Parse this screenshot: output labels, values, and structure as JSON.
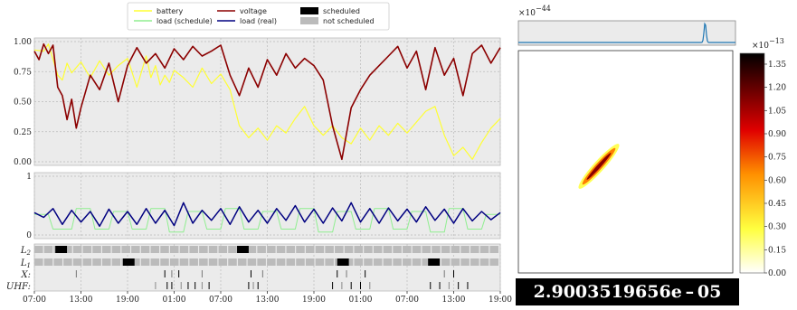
{
  "chart_data": [
    {
      "type": "line",
      "title": "",
      "ylim": [
        0,
        1
      ],
      "yticks": [
        "0.00",
        "0.25",
        "0.50",
        "0.75",
        "1.00"
      ],
      "grid": true,
      "legend": "top",
      "legend_entries": [
        {
          "label": "battery",
          "color": "#ffff33",
          "kind": "line"
        },
        {
          "label": "voltage",
          "color": "#8b0000",
          "kind": "line"
        },
        {
          "label": "scheduled",
          "color": "#000000",
          "kind": "patch"
        },
        {
          "label": "load (schedule)",
          "color": "#90ee90",
          "kind": "line"
        },
        {
          "label": "load (real)",
          "color": "#000080",
          "kind": "line"
        },
        {
          "label": "not scheduled",
          "color": "#bbbbbb",
          "kind": "patch"
        }
      ],
      "series": [
        {
          "name": "battery",
          "color": "#ffff33",
          "x": [
            0,
            2,
            3,
            5,
            6,
            7,
            8,
            10,
            12,
            14,
            16,
            18,
            20,
            22,
            24,
            25,
            26,
            27,
            28,
            29,
            30,
            32,
            34,
            36,
            38,
            40,
            42,
            44,
            46,
            48,
            50,
            52,
            54,
            56,
            58,
            60,
            62,
            64,
            66,
            68,
            70,
            72,
            74,
            76,
            78,
            80,
            82,
            84,
            86,
            88,
            90,
            92,
            94,
            96,
            98,
            100
          ],
          "y": [
            0.93,
            0.92,
            0.98,
            0.72,
            0.68,
            0.82,
            0.74,
            0.83,
            0.7,
            0.84,
            0.72,
            0.8,
            0.86,
            0.62,
            0.88,
            0.7,
            0.8,
            0.64,
            0.72,
            0.66,
            0.76,
            0.7,
            0.62,
            0.78,
            0.65,
            0.73,
            0.6,
            0.3,
            0.2,
            0.28,
            0.18,
            0.3,
            0.24,
            0.36,
            0.46,
            0.3,
            0.22,
            0.3,
            0.2,
            0.15,
            0.28,
            0.18,
            0.3,
            0.22,
            0.32,
            0.24,
            0.33,
            0.42,
            0.46,
            0.22,
            0.05,
            0.12,
            0.02,
            0.16,
            0.28,
            0.36
          ]
        },
        {
          "name": "voltage",
          "color": "#8b0000",
          "x": [
            0,
            1,
            2,
            3,
            4,
            5,
            6,
            7,
            8,
            9,
            10,
            12,
            14,
            16,
            18,
            20,
            22,
            24,
            26,
            28,
            30,
            32,
            34,
            36,
            38,
            40,
            42,
            44,
            46,
            48,
            50,
            52,
            54,
            56,
            58,
            60,
            62,
            64,
            66,
            68,
            70,
            72,
            74,
            76,
            78,
            80,
            82,
            84,
            86,
            88,
            90,
            92,
            94,
            96,
            98,
            100
          ],
          "y": [
            0.92,
            0.85,
            0.98,
            0.9,
            0.97,
            0.62,
            0.55,
            0.35,
            0.52,
            0.28,
            0.45,
            0.72,
            0.6,
            0.82,
            0.5,
            0.8,
            0.95,
            0.82,
            0.9,
            0.78,
            0.94,
            0.85,
            0.96,
            0.88,
            0.92,
            0.97,
            0.72,
            0.55,
            0.78,
            0.62,
            0.85,
            0.72,
            0.9,
            0.78,
            0.86,
            0.8,
            0.68,
            0.3,
            0.02,
            0.45,
            0.6,
            0.72,
            0.8,
            0.88,
            0.96,
            0.78,
            0.92,
            0.6,
            0.95,
            0.72,
            0.86,
            0.55,
            0.9,
            0.97,
            0.82,
            0.95
          ]
        }
      ]
    },
    {
      "type": "line",
      "title": "",
      "ylim": [
        0,
        1
      ],
      "yticks": [
        "0",
        "1"
      ],
      "grid": true,
      "series": [
        {
          "name": "load (schedule)",
          "color": "#90ee90",
          "x": [
            0,
            3,
            4,
            8,
            9,
            12,
            13,
            16,
            17,
            20,
            21,
            24,
            25,
            28,
            29,
            32,
            33,
            36,
            37,
            40,
            41,
            44,
            45,
            48,
            49,
            52,
            53,
            56,
            57,
            60,
            61,
            64,
            65,
            68,
            69,
            72,
            73,
            76,
            77,
            80,
            81,
            84,
            85,
            88,
            89,
            92,
            93,
            96,
            97,
            100
          ],
          "y": [
            0.35,
            0.35,
            0.1,
            0.1,
            0.45,
            0.45,
            0.1,
            0.1,
            0.4,
            0.4,
            0.1,
            0.1,
            0.45,
            0.45,
            0.05,
            0.05,
            0.4,
            0.4,
            0.1,
            0.1,
            0.45,
            0.45,
            0.1,
            0.1,
            0.4,
            0.4,
            0.1,
            0.1,
            0.45,
            0.45,
            0.05,
            0.05,
            0.4,
            0.4,
            0.1,
            0.1,
            0.45,
            0.45,
            0.1,
            0.1,
            0.4,
            0.4,
            0.05,
            0.05,
            0.45,
            0.45,
            0.1,
            0.1,
            0.35,
            0.35
          ]
        },
        {
          "name": "load (real)",
          "color": "#000080",
          "x": [
            0,
            2,
            4,
            6,
            8,
            10,
            12,
            14,
            16,
            18,
            20,
            22,
            24,
            26,
            28,
            30,
            32,
            34,
            36,
            38,
            40,
            42,
            44,
            46,
            48,
            50,
            52,
            54,
            56,
            58,
            60,
            62,
            64,
            66,
            68,
            70,
            72,
            74,
            76,
            78,
            80,
            82,
            84,
            86,
            88,
            90,
            92,
            94,
            96,
            98,
            100
          ],
          "y": [
            0.38,
            0.3,
            0.45,
            0.18,
            0.42,
            0.22,
            0.4,
            0.15,
            0.44,
            0.2,
            0.4,
            0.18,
            0.45,
            0.2,
            0.42,
            0.16,
            0.55,
            0.2,
            0.42,
            0.25,
            0.45,
            0.18,
            0.48,
            0.22,
            0.42,
            0.2,
            0.45,
            0.25,
            0.5,
            0.22,
            0.44,
            0.2,
            0.46,
            0.24,
            0.55,
            0.22,
            0.45,
            0.2,
            0.46,
            0.24,
            0.44,
            0.22,
            0.48,
            0.25,
            0.44,
            0.2,
            0.45,
            0.24,
            0.4,
            0.26,
            0.38
          ]
        }
      ]
    },
    {
      "type": "table",
      "title": "",
      "rows": [
        "L2",
        "L1",
        "X",
        "UHF"
      ],
      "xticks": [
        "07:00",
        "13:00",
        "19:00",
        "01:00",
        "07:00",
        "13:00",
        "19:00",
        "01:00",
        "07:00",
        "13:00",
        "19:00"
      ],
      "scheduled_blocks": [
        {
          "row": "L2",
          "start": 4.5,
          "end": 7
        },
        {
          "row": "L2",
          "start": 43.5,
          "end": 46
        },
        {
          "row": "L1",
          "start": 19,
          "end": 21.5
        },
        {
          "row": "L1",
          "start": 65,
          "end": 67.5
        },
        {
          "row": "L1",
          "start": 84.5,
          "end": 87
        }
      ],
      "X_marks": [
        9,
        28,
        29.5,
        31,
        36,
        46.5,
        49,
        65,
        67,
        71,
        88,
        90
      ],
      "UHF_marks": [
        26,
        28.5,
        29.5,
        31.5,
        33,
        34.5,
        36,
        37.5,
        46,
        47,
        48,
        64,
        66,
        68,
        70,
        72,
        85,
        87,
        89,
        91,
        93
      ]
    },
    {
      "type": "heatmap",
      "title": "",
      "offset_label_top": "×10",
      "offset_exponent_top": "−44",
      "offset_label_colorbar": "×10",
      "offset_exponent_colorbar": "−13",
      "colorbar_ticks": [
        "0.00",
        "0.15",
        "0.30",
        "0.45",
        "0.60",
        "0.75",
        "0.90",
        "1.05",
        "1.20",
        "1.35"
      ],
      "colorbar_range": [
        0,
        1.42
      ],
      "marginal_peak_position": 0.86
    }
  ],
  "value_box": {
    "mantissa": "2.9003519656",
    "exponent_text": "e – 05"
  }
}
